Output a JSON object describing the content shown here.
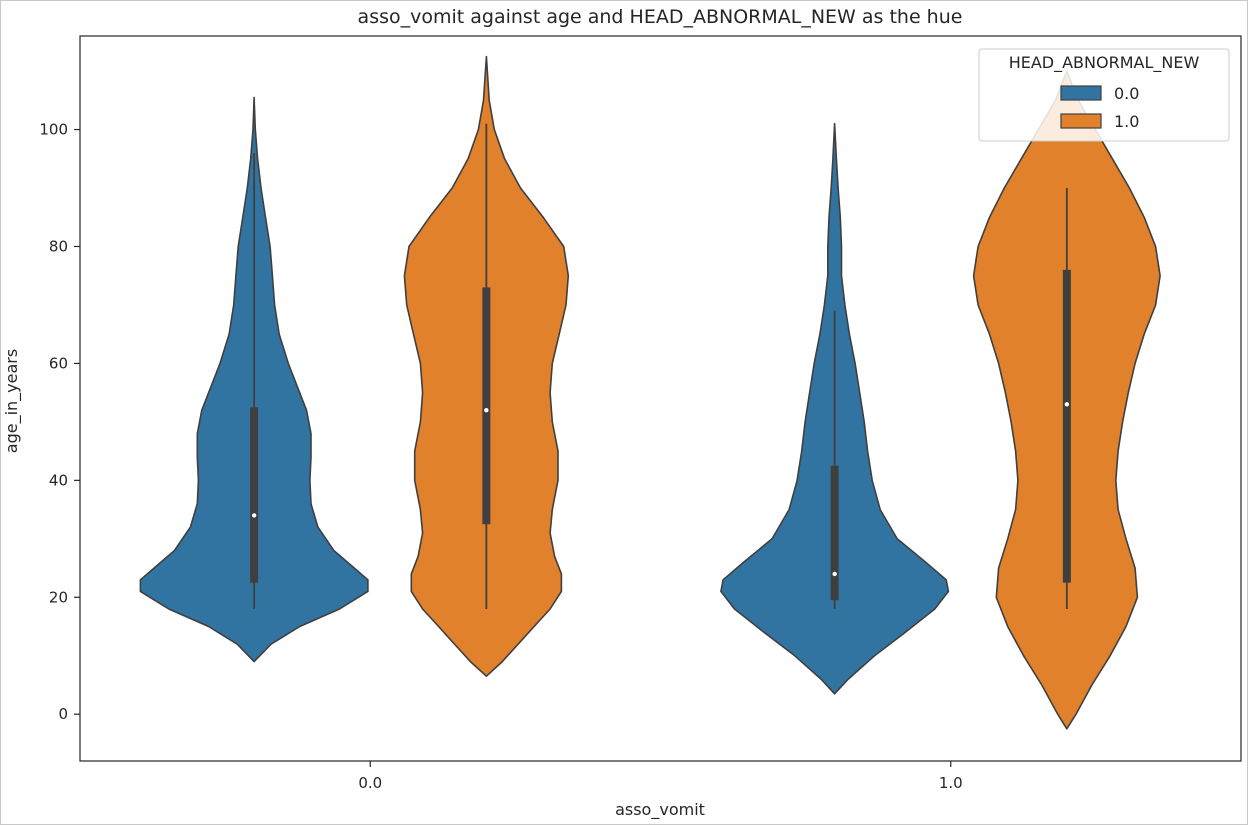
{
  "chart_data": {
    "type": "violin",
    "title": "asso_vomit against age and HEAD_ABNORMAL_NEW as the hue",
    "xlabel": "asso_vomit",
    "ylabel": "age_in_years",
    "categories": [
      "0.0",
      "1.0"
    ],
    "y_ticks": [
      0,
      20,
      40,
      60,
      80,
      100
    ],
    "ylim": [
      -8,
      116
    ],
    "legend": {
      "title": "HEAD_ABNORMAL_NEW",
      "position": "top-right",
      "entries": [
        {
          "label": "0.0",
          "color": "#3274a1"
        },
        {
          "label": "1.0",
          "color": "#e1812c"
        }
      ]
    },
    "series": [
      {
        "hue": "0.0",
        "color": "#3274a1",
        "violins": [
          {
            "category": "0.0",
            "min": 18,
            "q1": 22.5,
            "median": 34,
            "q3": 52.5,
            "max": 96,
            "kde_min": 9,
            "kde_max": 105.5,
            "density": [
              [
                9,
                0.0
              ],
              [
                12,
                0.15
              ],
              [
                15,
                0.4
              ],
              [
                18,
                0.75
              ],
              [
                21,
                1.0
              ],
              [
                23,
                1.0
              ],
              [
                25,
                0.88
              ],
              [
                28,
                0.7
              ],
              [
                32,
                0.56
              ],
              [
                36,
                0.5
              ],
              [
                40,
                0.49
              ],
              [
                44,
                0.5
              ],
              [
                48,
                0.5
              ],
              [
                52,
                0.46
              ],
              [
                56,
                0.38
              ],
              [
                60,
                0.3
              ],
              [
                65,
                0.22
              ],
              [
                70,
                0.18
              ],
              [
                75,
                0.16
              ],
              [
                80,
                0.14
              ],
              [
                85,
                0.1
              ],
              [
                90,
                0.06
              ],
              [
                95,
                0.03
              ],
              [
                100,
                0.01
              ],
              [
                105.5,
                0.0
              ]
            ]
          },
          {
            "category": "1.0",
            "min": 18,
            "q1": 19.5,
            "median": 24,
            "q3": 42.5,
            "max": 69,
            "kde_min": 3.5,
            "kde_max": 101,
            "density": [
              [
                3.5,
                0.0
              ],
              [
                6,
                0.12
              ],
              [
                10,
                0.35
              ],
              [
                14,
                0.62
              ],
              [
                18,
                0.88
              ],
              [
                21,
                1.0
              ],
              [
                23,
                0.98
              ],
              [
                26,
                0.8
              ],
              [
                30,
                0.55
              ],
              [
                35,
                0.4
              ],
              [
                40,
                0.33
              ],
              [
                45,
                0.29
              ],
              [
                50,
                0.26
              ],
              [
                55,
                0.22
              ],
              [
                60,
                0.18
              ],
              [
                65,
                0.13
              ],
              [
                70,
                0.09
              ],
              [
                75,
                0.06
              ],
              [
                80,
                0.06
              ],
              [
                85,
                0.05
              ],
              [
                90,
                0.03
              ],
              [
                95,
                0.015
              ],
              [
                101,
                0.0
              ]
            ]
          }
        ]
      },
      {
        "hue": "1.0",
        "color": "#e1812c",
        "violins": [
          {
            "category": "0.0",
            "min": 18,
            "q1": 32.5,
            "median": 52,
            "q3": 73,
            "max": 101,
            "kde_min": 6.5,
            "kde_max": 112.5,
            "density": [
              [
                6.5,
                0.0
              ],
              [
                9,
                0.14
              ],
              [
                12,
                0.28
              ],
              [
                15,
                0.42
              ],
              [
                18,
                0.56
              ],
              [
                21,
                0.66
              ],
              [
                24,
                0.66
              ],
              [
                27,
                0.6
              ],
              [
                31,
                0.56
              ],
              [
                35,
                0.58
              ],
              [
                40,
                0.63
              ],
              [
                45,
                0.63
              ],
              [
                50,
                0.58
              ],
              [
                55,
                0.56
              ],
              [
                60,
                0.58
              ],
              [
                65,
                0.64
              ],
              [
                70,
                0.7
              ],
              [
                75,
                0.72
              ],
              [
                80,
                0.68
              ],
              [
                85,
                0.5
              ],
              [
                90,
                0.3
              ],
              [
                95,
                0.16
              ],
              [
                100,
                0.07
              ],
              [
                105,
                0.025
              ],
              [
                112.5,
                0.0
              ]
            ]
          },
          {
            "category": "1.0",
            "min": 18,
            "q1": 22.5,
            "median": 53,
            "q3": 76,
            "max": 90,
            "kde_min": -2.5,
            "kde_max": 110,
            "density": [
              [
                -2.5,
                0.0
              ],
              [
                0,
                0.08
              ],
              [
                5,
                0.22
              ],
              [
                10,
                0.38
              ],
              [
                15,
                0.52
              ],
              [
                20,
                0.62
              ],
              [
                25,
                0.6
              ],
              [
                30,
                0.52
              ],
              [
                35,
                0.45
              ],
              [
                40,
                0.43
              ],
              [
                45,
                0.45
              ],
              [
                50,
                0.49
              ],
              [
                55,
                0.54
              ],
              [
                60,
                0.6
              ],
              [
                65,
                0.68
              ],
              [
                70,
                0.78
              ],
              [
                75,
                0.82
              ],
              [
                80,
                0.78
              ],
              [
                85,
                0.68
              ],
              [
                90,
                0.55
              ],
              [
                95,
                0.4
              ],
              [
                100,
                0.25
              ],
              [
                105,
                0.1
              ],
              [
                110,
                0.0
              ]
            ]
          }
        ]
      }
    ]
  }
}
